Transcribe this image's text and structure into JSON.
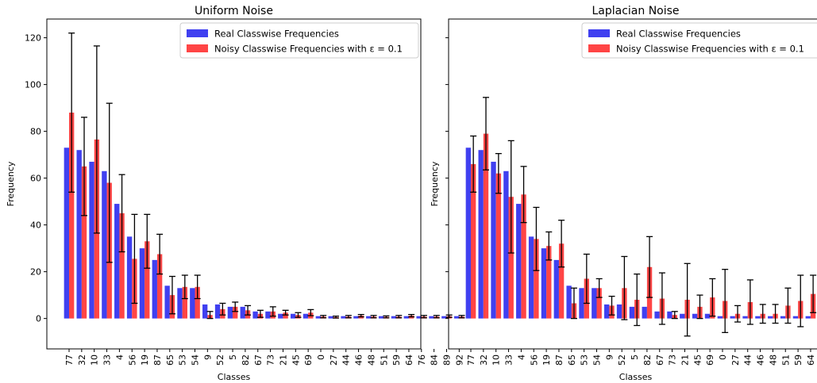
{
  "chart_data": [
    {
      "type": "bar",
      "title": "Uniform Noise",
      "xlabel": "Classes",
      "ylabel": "Frequency",
      "ylim": [
        -13,
        128
      ],
      "yticks": [
        0,
        20,
        40,
        60,
        80,
        100,
        120
      ],
      "show_y_ticklabels": true,
      "grid": false,
      "legend_position": "top-right",
      "legend_entries": [
        "Real Classwise Frequencies",
        "Noisy Classwise Frequencies with ε =  0.1"
      ],
      "categories": [
        "77",
        "32",
        "10",
        "33",
        "4",
        "56",
        "19",
        "87",
        "65",
        "53",
        "54",
        "9",
        "52",
        "5",
        "82",
        "67",
        "73",
        "21",
        "45",
        "69",
        "0",
        "27",
        "44",
        "46",
        "48",
        "51",
        "59",
        "64",
        "76",
        "84",
        "89",
        "92"
      ],
      "series": [
        {
          "name": "Real Classwise Frequencies",
          "color": "#4040f0",
          "values": [
            73,
            72,
            67,
            63,
            49,
            35,
            30,
            25,
            14,
            13,
            13,
            6,
            6,
            5,
            5,
            3,
            3,
            2,
            2,
            2,
            1,
            1,
            1,
            1,
            1,
            1,
            1,
            1,
            1,
            1,
            1,
            1
          ]
        },
        {
          "name": "Noisy Classwise Frequencies with ε =  0.1",
          "color": "#ff4545",
          "values": [
            88,
            65,
            76.5,
            58,
            45,
            25.5,
            33,
            27.5,
            10,
            13.5,
            13.5,
            1.5,
            4,
            5,
            3.5,
            2,
            3,
            2.5,
            1.5,
            2.5,
            0.8,
            0.6,
            0.8,
            1.2,
            0.8,
            0.7,
            0.8,
            1.2,
            0.8,
            0.8,
            1,
            0.8
          ],
          "error": [
            34,
            21,
            40,
            34,
            16.5,
            19,
            11.5,
            8.5,
            8,
            5,
            5,
            1.5,
            2.5,
            2,
            2,
            1.5,
            2,
            1,
            1,
            1.3,
            0.5,
            0.4,
            0.5,
            0.5,
            0.5,
            0.4,
            0.5,
            0.5,
            0.5,
            0.5,
            0.5,
            0.5
          ]
        }
      ]
    },
    {
      "type": "bar",
      "title": "Laplacian Noise",
      "xlabel": "Classes",
      "ylabel": "Frequency",
      "ylim": [
        -13,
        128
      ],
      "yticks": [
        0,
        20,
        40,
        60,
        80,
        100,
        120
      ],
      "show_y_ticklabels": false,
      "grid": false,
      "legend_position": "top-right",
      "legend_entries": [
        "Real Classwise Frequencies",
        "Noisy Classwise Frequencies with ε =  0.1"
      ],
      "categories": [
        "77",
        "32",
        "10",
        "33",
        "4",
        "56",
        "19",
        "87",
        "65",
        "53",
        "54",
        "9",
        "52",
        "5",
        "82",
        "67",
        "73",
        "21",
        "45",
        "69",
        "0",
        "27",
        "44",
        "46",
        "48",
        "51",
        "59",
        "64",
        "76",
        "84",
        "89",
        "92"
      ],
      "series": [
        {
          "name": "Real Classwise Frequencies",
          "color": "#4040f0",
          "values": [
            73,
            72,
            67,
            63,
            49,
            35,
            30,
            25,
            14,
            13,
            13,
            6,
            6,
            5,
            5,
            3,
            3,
            2,
            2,
            2,
            1,
            1,
            1,
            1,
            1,
            1,
            1,
            1,
            1,
            1,
            1,
            1
          ]
        },
        {
          "name": "Noisy Classwise Frequencies with ε =  0.1",
          "color": "#ff4545",
          "values": [
            66,
            79,
            62,
            52,
            53,
            34,
            31,
            32,
            6.5,
            17,
            13,
            5.5,
            13,
            8,
            22,
            8.5,
            1.5,
            8,
            5,
            9,
            7.5,
            2,
            7,
            2,
            2,
            5.5,
            7.5,
            10.5,
            15,
            5,
            1,
            3
          ],
          "error": [
            12,
            15.5,
            8.5,
            24,
            12,
            13.5,
            6,
            10,
            6.5,
            10.5,
            4,
            4,
            13.5,
            11,
            13,
            11,
            1.5,
            15.5,
            5,
            8,
            13.5,
            3.5,
            9.5,
            4,
            4,
            7.5,
            11,
            8,
            15.5,
            6.5,
            2,
            4
          ]
        }
      ]
    }
  ]
}
